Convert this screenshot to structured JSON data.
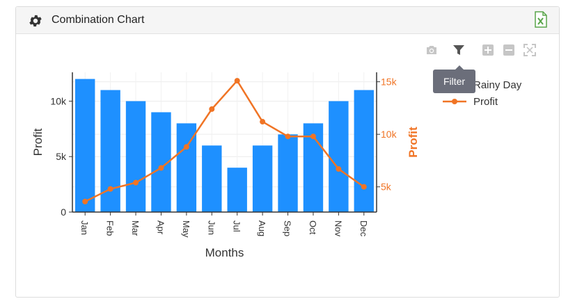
{
  "panel": {
    "title": "Combination Chart",
    "excel_icon": "excel-icon",
    "gear_icon": "gear-icon"
  },
  "toolbar": {
    "icons": [
      "camera-icon",
      "filter-icon",
      "zoom-in-icon",
      "zoom-out-icon",
      "reset-icon"
    ],
    "tooltip": "Filter"
  },
  "colors": {
    "bar": "#1e90ff",
    "line": "#f07425",
    "axis_right": "#f07425",
    "text": "#333333"
  },
  "chart_data": {
    "type": "bar",
    "categories": [
      "Jan",
      "Feb",
      "Mar",
      "Apr",
      "May",
      "Jun",
      "Jul",
      "Aug",
      "Sep",
      "Oct",
      "Nov",
      "Dec"
    ],
    "series": [
      {
        "name": "Rainy Day",
        "type": "bar",
        "axis": "left",
        "values": [
          12000,
          11000,
          10000,
          9000,
          8000,
          6000,
          4000,
          6000,
          7000,
          8000,
          10000,
          11000
        ]
      },
      {
        "name": "Profit",
        "type": "line",
        "axis": "right",
        "values": [
          3600,
          4800,
          5400,
          6800,
          8800,
          12400,
          15100,
          11200,
          9800,
          9800,
          6700,
          5000
        ]
      }
    ],
    "xlabel": "Months",
    "ylabel": "Profit",
    "y2label": "Profit",
    "ylim": [
      0,
      12600
    ],
    "y2lim": [
      2600,
      15900
    ],
    "yticks": [
      0,
      5000,
      10000
    ],
    "yticklabels": [
      "0",
      "5k",
      "10k"
    ],
    "y2ticks": [
      5000,
      10000,
      15000
    ],
    "y2ticklabels": [
      "5k",
      "10k",
      "15k"
    ],
    "grid": true,
    "legend_position": "top-right"
  }
}
